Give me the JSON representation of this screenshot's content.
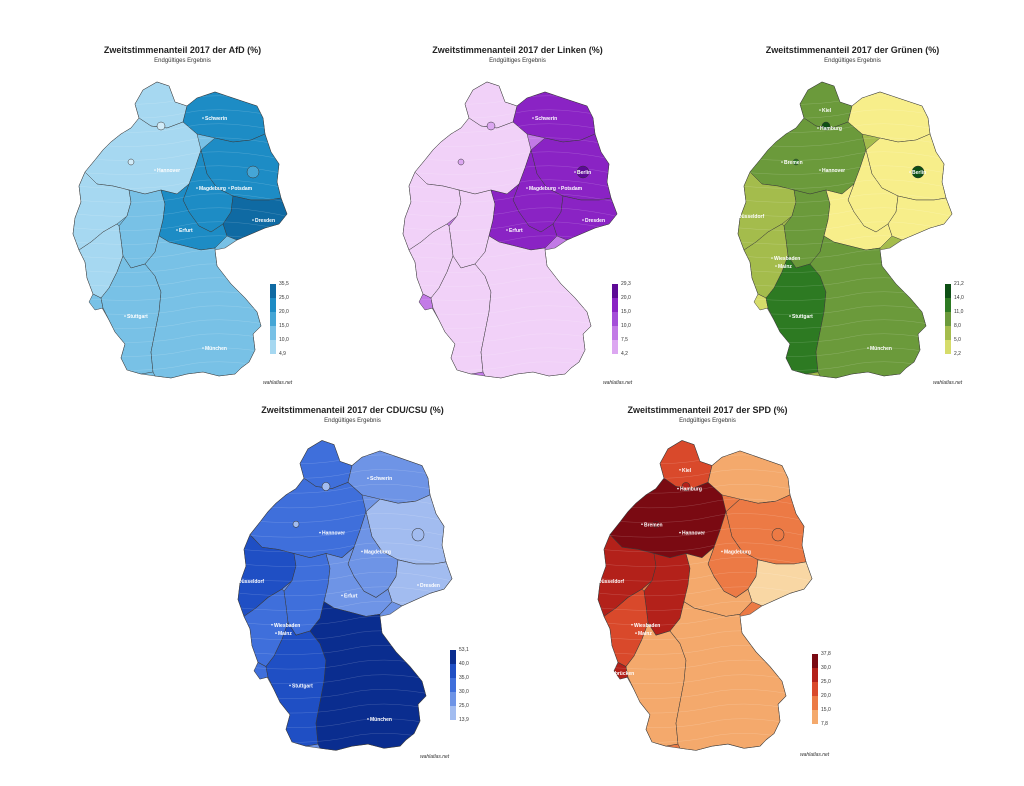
{
  "maps": [
    {
      "id": "afd",
      "title": "Zweitstimmenanteil 2017 der AfD (%)",
      "subtitle": "Endgültiges Ergebnis",
      "credit": "wahlatlas.net",
      "legend_ticks": [
        "35,5",
        "25,0",
        "20,0",
        "15,0",
        "10,0",
        "4,9"
      ],
      "colors": [
        "#0f6aa3",
        "#1d8cc5",
        "#45a6d6",
        "#78c1e6",
        "#a6d8f1",
        "#d2ecf9"
      ],
      "cities": [
        "Schwerin",
        "Hannover",
        "Magdeburg",
        "Potsdam",
        "Erfurt",
        "Dresden",
        "Stuttgart",
        "München"
      ]
    },
    {
      "id": "linke",
      "title": "Zweitstimmenanteil 2017 der Linken (%)",
      "subtitle": "Endgültiges Ergebnis",
      "credit": "wahlatlas.net",
      "legend_ticks": [
        "29,3",
        "20,0",
        "15,0",
        "10,0",
        "7,5",
        "4,2"
      ],
      "colors": [
        "#5d0a96",
        "#8a23c4",
        "#a44ed8",
        "#c27ae6",
        "#dca7f1",
        "#f1d1f8"
      ],
      "cities": [
        "Schwerin",
        "Berlin",
        "Potsdam",
        "Magdeburg",
        "Erfurt",
        "Dresden"
      ]
    },
    {
      "id": "gruene",
      "title": "Zweitstimmenanteil 2017 der Grünen (%)",
      "subtitle": "Endgültiges Ergebnis",
      "credit": "wahlatlas.net",
      "legend_ticks": [
        "21,2",
        "14,0",
        "11,0",
        "8,0",
        "5,0",
        "2,2"
      ],
      "colors": [
        "#0d4f14",
        "#2d7a22",
        "#6b9a3b",
        "#a4bc4c",
        "#d6dc6a",
        "#f7ee8a"
      ],
      "cities": [
        "Kiel",
        "Hamburg",
        "Bremen",
        "Hannover",
        "Berlin",
        "Düsseldorf",
        "Wiesbaden",
        "Mainz",
        "Stuttgart",
        "München"
      ]
    },
    {
      "id": "cdu",
      "title": "Zweitstimmenanteil 2017 der CDU/CSU (%)",
      "subtitle": "Endgültiges Ergebnis",
      "credit": "wahlatlas.net",
      "legend_ticks": [
        "53,1",
        "40,0",
        "35,0",
        "30,0",
        "25,0",
        "13,9"
      ],
      "colors": [
        "#0a2d8f",
        "#1f4fc4",
        "#3f6fdb",
        "#6e94e6",
        "#a2bcf0",
        "#d3e0f8"
      ],
      "cities": [
        "Schwerin",
        "Hannover",
        "Magdeburg",
        "Düsseldorf",
        "Erfurt",
        "Dresden",
        "Wiesbaden",
        "Mainz",
        "Stuttgart",
        "München"
      ]
    },
    {
      "id": "spd",
      "title": "Zweitstimmenanteil 2017 der SPD (%)",
      "subtitle": "Endgültiges Ergebnis",
      "credit": "wahlatlas.net",
      "legend_ticks": [
        "37,8",
        "30,0",
        "25,0",
        "20,0",
        "15,0",
        "7,8"
      ],
      "colors": [
        "#7a0a12",
        "#b3211a",
        "#d9492b",
        "#ec7a45",
        "#f4a96c",
        "#f9d7a4"
      ],
      "cities": [
        "Kiel",
        "Hamburg",
        "Bremen",
        "Hannover",
        "Magdeburg",
        "Düsseldorf",
        "Wiesbaden",
        "Mainz",
        "Saarbrücken"
      ]
    }
  ]
}
